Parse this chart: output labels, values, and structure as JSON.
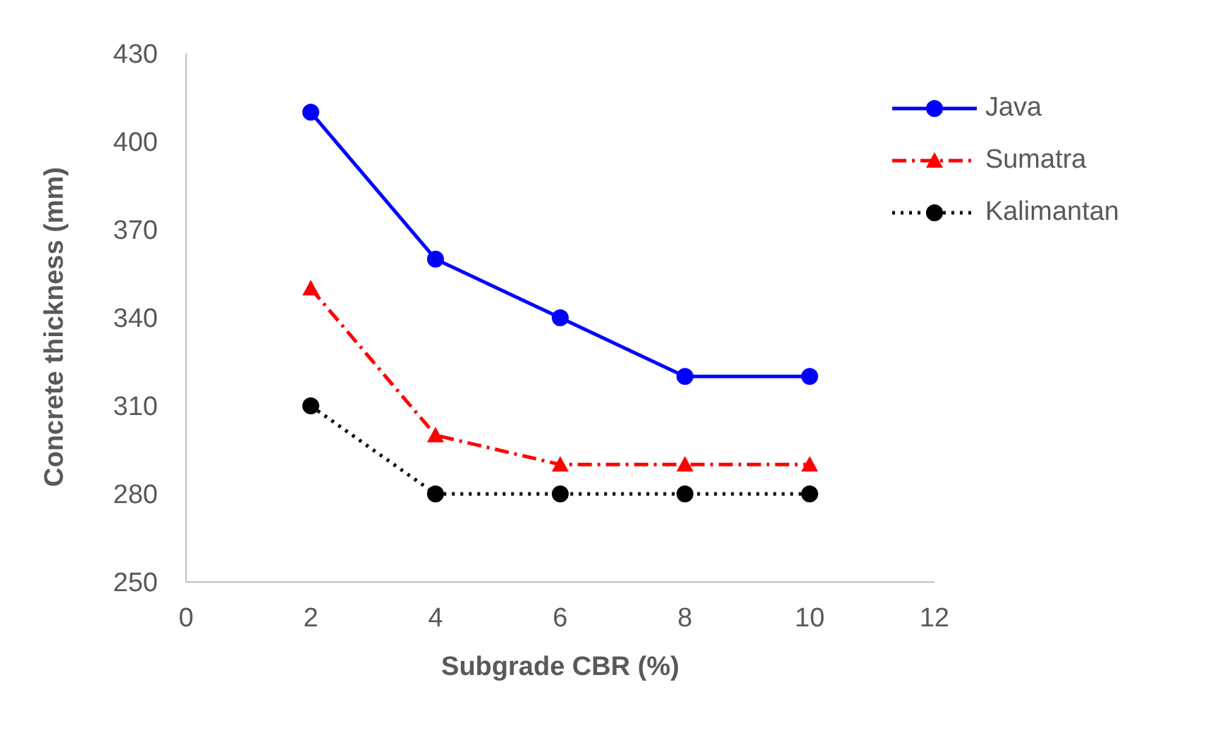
{
  "chart_data": {
    "type": "line",
    "xlabel": "Subgrade CBR (%)",
    "ylabel": "Concrete thickness (mm)",
    "x": [
      2,
      4,
      6,
      8,
      10
    ],
    "series": [
      {
        "name": "Java",
        "color": "#0000ff",
        "values": [
          410,
          360,
          340,
          320,
          320
        ],
        "marker": "circle",
        "line_style": "solid"
      },
      {
        "name": "Sumatra",
        "color": "#ff0000",
        "values": [
          350,
          300,
          290,
          290,
          290
        ],
        "marker": "triangle",
        "line_style": "dashed"
      },
      {
        "name": "Kalimantan",
        "color": "#000000",
        "values": [
          310,
          280,
          280,
          280,
          280
        ],
        "marker": "circle",
        "line_style": "dotted"
      }
    ],
    "xlim": [
      0,
      12
    ],
    "xticks": [
      0,
      2,
      4,
      6,
      8,
      10,
      12
    ],
    "ylim": [
      250,
      430
    ],
    "yticks": [
      250,
      280,
      310,
      340,
      370,
      400,
      430
    ],
    "grid": false,
    "legend": "top right"
  }
}
